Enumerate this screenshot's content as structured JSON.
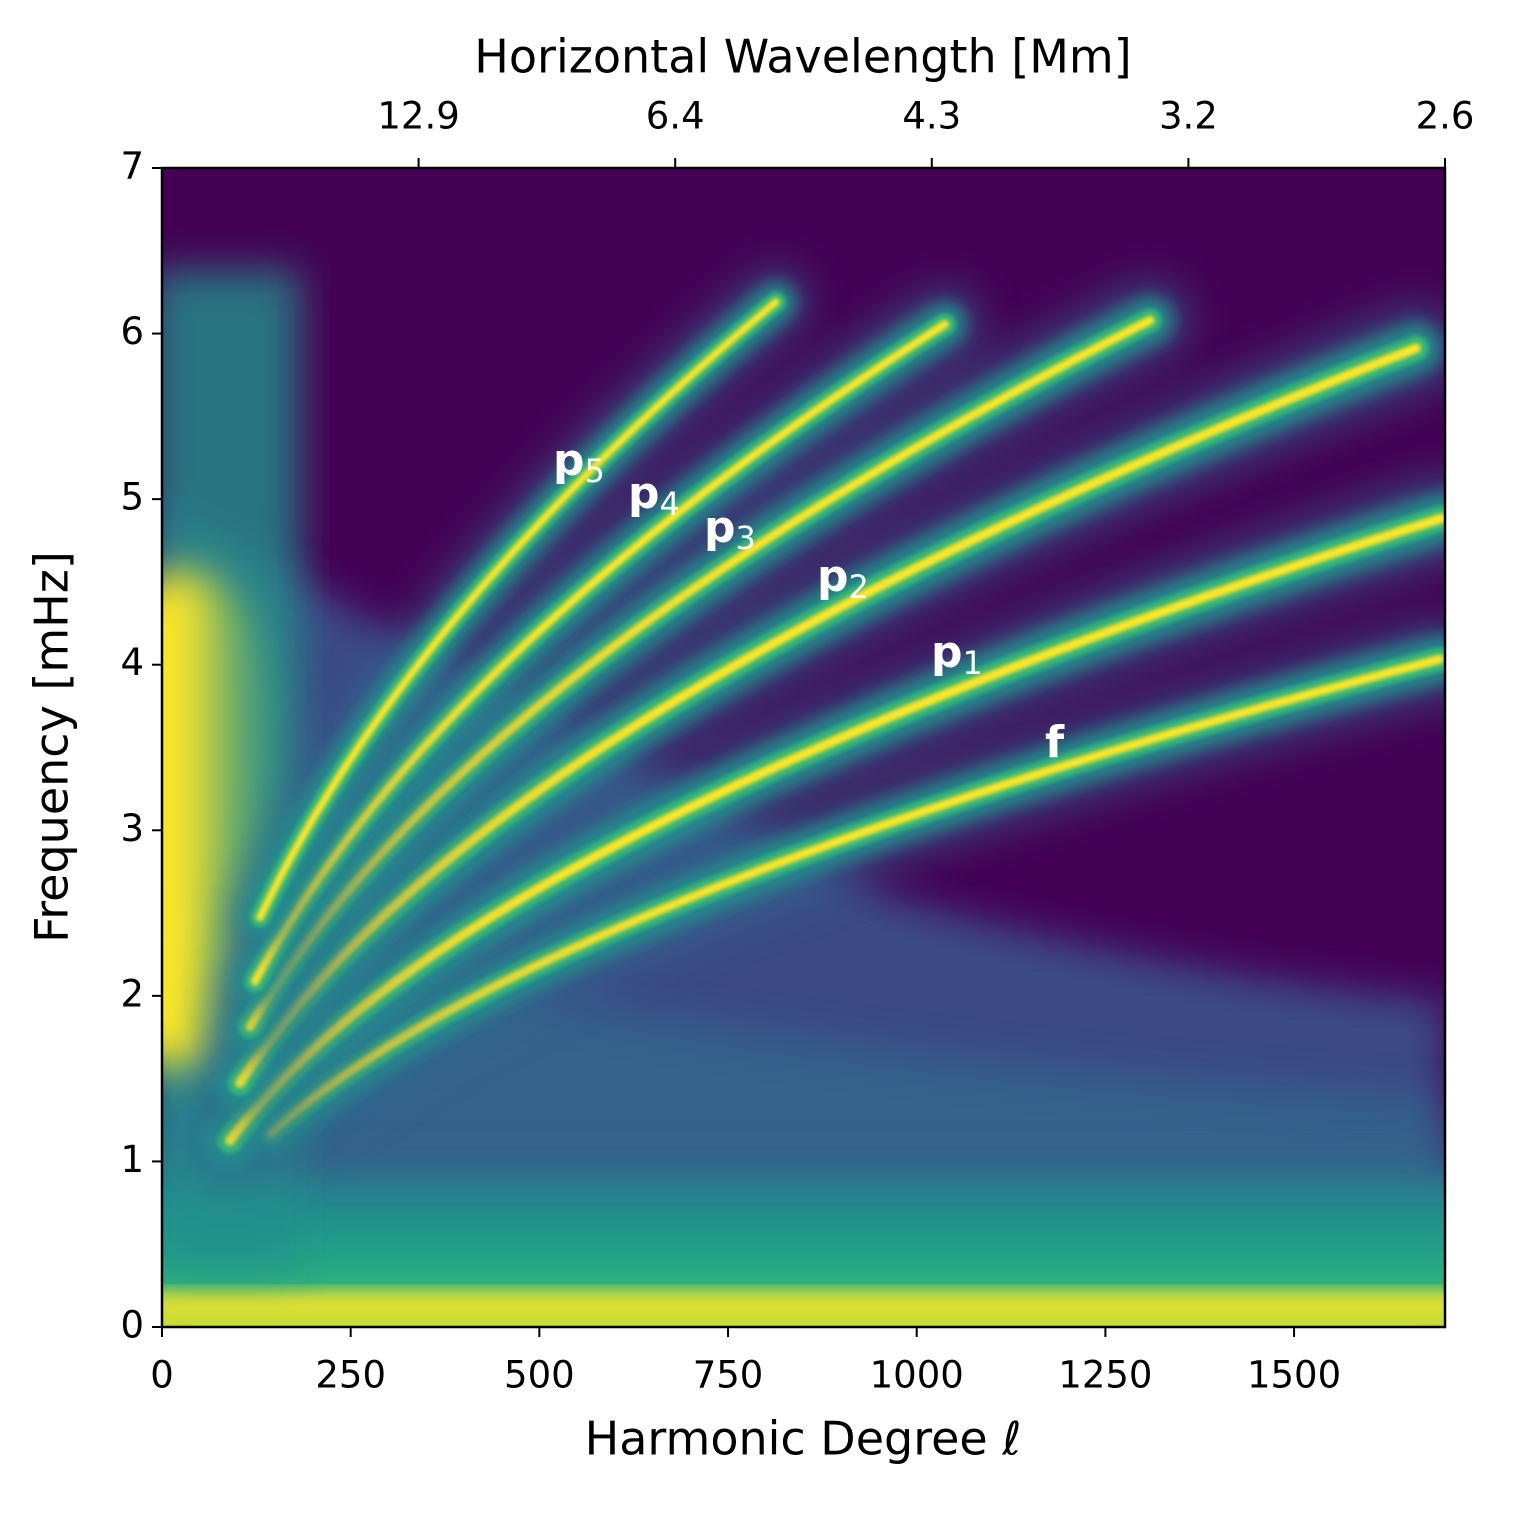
{
  "chart_data": {
    "type": "heatmap",
    "colormap": "viridis",
    "x_label": "Harmonic Degree ℓ",
    "y_label": "Frequency [mHz]",
    "x2_label": "Horizontal Wavelength [Mm]",
    "xlim": [
      0,
      1700
    ],
    "ylim": [
      0,
      7
    ],
    "xticks": [
      0,
      250,
      500,
      750,
      1000,
      1250,
      1500
    ],
    "yticks": [
      0,
      1,
      2,
      3,
      4,
      5,
      6,
      7
    ],
    "x2ticks": [
      {
        "value": 340,
        "label": "12.9"
      },
      {
        "value": 680,
        "label": "6.4"
      },
      {
        "value": 1020,
        "label": "4.3"
      },
      {
        "value": 1360,
        "label": "3.2"
      },
      {
        "value": 1700,
        "label": "2.6"
      }
    ],
    "annotations": [
      {
        "text": "p",
        "subscript": "5"
      },
      {
        "text": "p",
        "subscript": "4"
      },
      {
        "text": "p",
        "subscript": "3"
      },
      {
        "text": "p",
        "subscript": "2"
      },
      {
        "text": "p",
        "subscript": "1"
      },
      {
        "text": "f"
      }
    ]
  }
}
